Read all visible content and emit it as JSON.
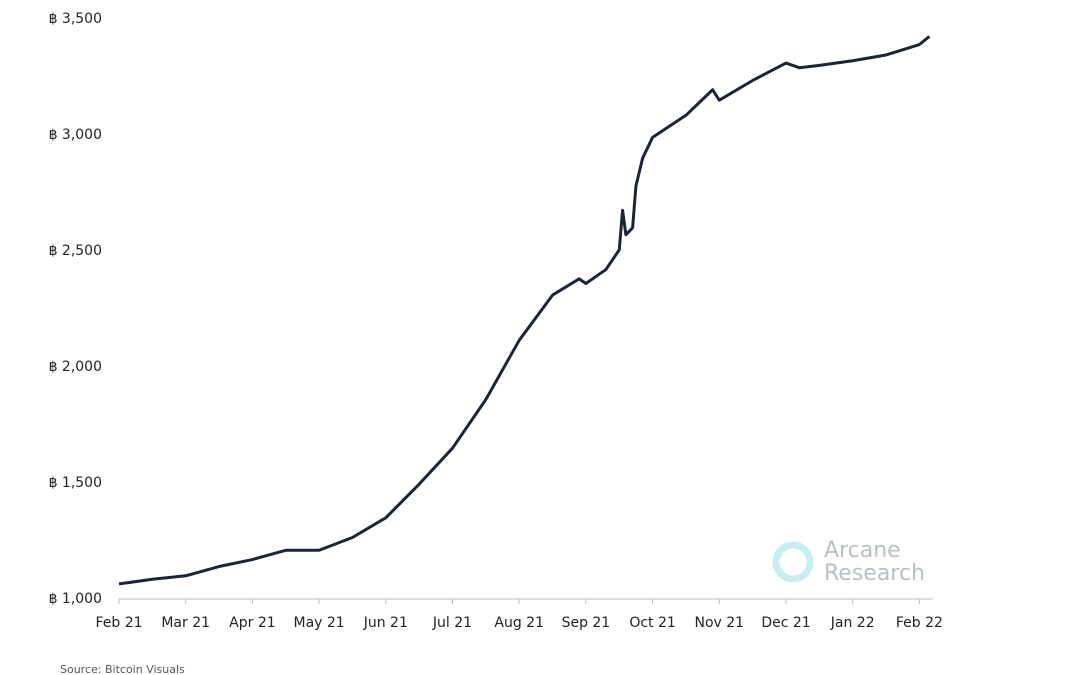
{
  "chart_data": {
    "type": "line",
    "watermark": "Arcane Research",
    "source": "Source: Bitcoin Visuals",
    "xlim": [
      0,
      12.2
    ],
    "xticks": [
      {
        "value": 0,
        "label": "Feb 21"
      },
      {
        "value": 1,
        "label": "Mar 21"
      },
      {
        "value": 2,
        "label": "Apr 21"
      },
      {
        "value": 3,
        "label": "May 21"
      },
      {
        "value": 4,
        "label": "Jun 21"
      },
      {
        "value": 5,
        "label": "Jul 21"
      },
      {
        "value": 6,
        "label": "Aug 21"
      },
      {
        "value": 7,
        "label": "Sep 21"
      },
      {
        "value": 8,
        "label": "Oct 21"
      },
      {
        "value": 9,
        "label": "Nov 21"
      },
      {
        "value": 10,
        "label": "Dec 21"
      },
      {
        "value": 11,
        "label": "Jan 22"
      },
      {
        "value": 12,
        "label": "Feb 22"
      }
    ],
    "ylim": [
      1000,
      3500
    ],
    "yticks": [
      {
        "value": 1000,
        "label": "฿ 1,000"
      },
      {
        "value": 1500,
        "label": "฿ 1,500"
      },
      {
        "value": 2000,
        "label": "฿ 2,000"
      },
      {
        "value": 2500,
        "label": "฿ 2,500"
      },
      {
        "value": 3000,
        "label": "฿ 3,000"
      },
      {
        "value": 3500,
        "label": "฿ 3,500"
      }
    ],
    "series": [
      {
        "color": "#1c2536",
        "x": [
          0,
          0.5,
          1,
          1.5,
          2,
          2.5,
          3,
          3.5,
          4,
          4.5,
          5,
          5.5,
          6,
          6.5,
          6.9,
          7,
          7.3,
          7.5,
          7.55,
          7.6,
          7.7,
          7.75,
          7.85,
          8,
          8.5,
          8.9,
          9,
          9.5,
          10,
          10.2,
          10.5,
          11,
          11.5,
          12,
          12.15
        ],
        "values": [
          1065,
          1085,
          1100,
          1140,
          1170,
          1210,
          1210,
          1265,
          1350,
          1495,
          1650,
          1860,
          2115,
          2310,
          2380,
          2360,
          2420,
          2505,
          2675,
          2570,
          2600,
          2780,
          2900,
          2990,
          3085,
          3195,
          3150,
          3235,
          3310,
          3290,
          3300,
          3320,
          3345,
          3390,
          3425
        ]
      }
    ]
  }
}
